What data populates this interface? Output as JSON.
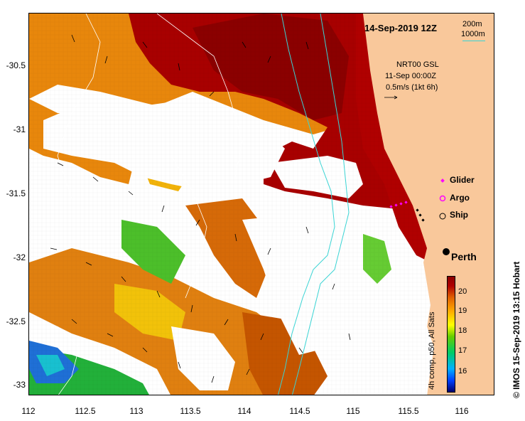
{
  "map": {
    "title": "14-Sep-2019 12Z",
    "depth_contours": [
      "200m",
      "1000m"
    ],
    "depth_color": "#39d4d4",
    "land_color": "#f9c89b",
    "current_info": [
      "NRT00 GSL",
      "11-Sep 00:00Z",
      "0.5m/s (1kt 6h)"
    ],
    "x_axis_ticks": [
      "112",
      "112.5",
      "113",
      "113.5",
      "114",
      "114.5",
      "115",
      "115.5",
      "116"
    ],
    "y_axis_ticks": [
      "-30.5",
      "-31",
      "-31.5",
      "-32",
      "-32.5",
      "-33"
    ],
    "legend": [
      {
        "label": "Glider",
        "symbol": "magenta-diamond"
      },
      {
        "label": "Argo",
        "symbol": "magenta-ring"
      },
      {
        "label": "Ship",
        "symbol": "black-circle"
      }
    ],
    "place_label": "Perth",
    "colorbar": {
      "ticks": [
        "20",
        "19",
        "18",
        "17",
        "16"
      ],
      "label": "4h comp, p50, All Sats"
    },
    "credit": "© IMOS 15-Sep-2019 13:15 Hobart"
  }
}
